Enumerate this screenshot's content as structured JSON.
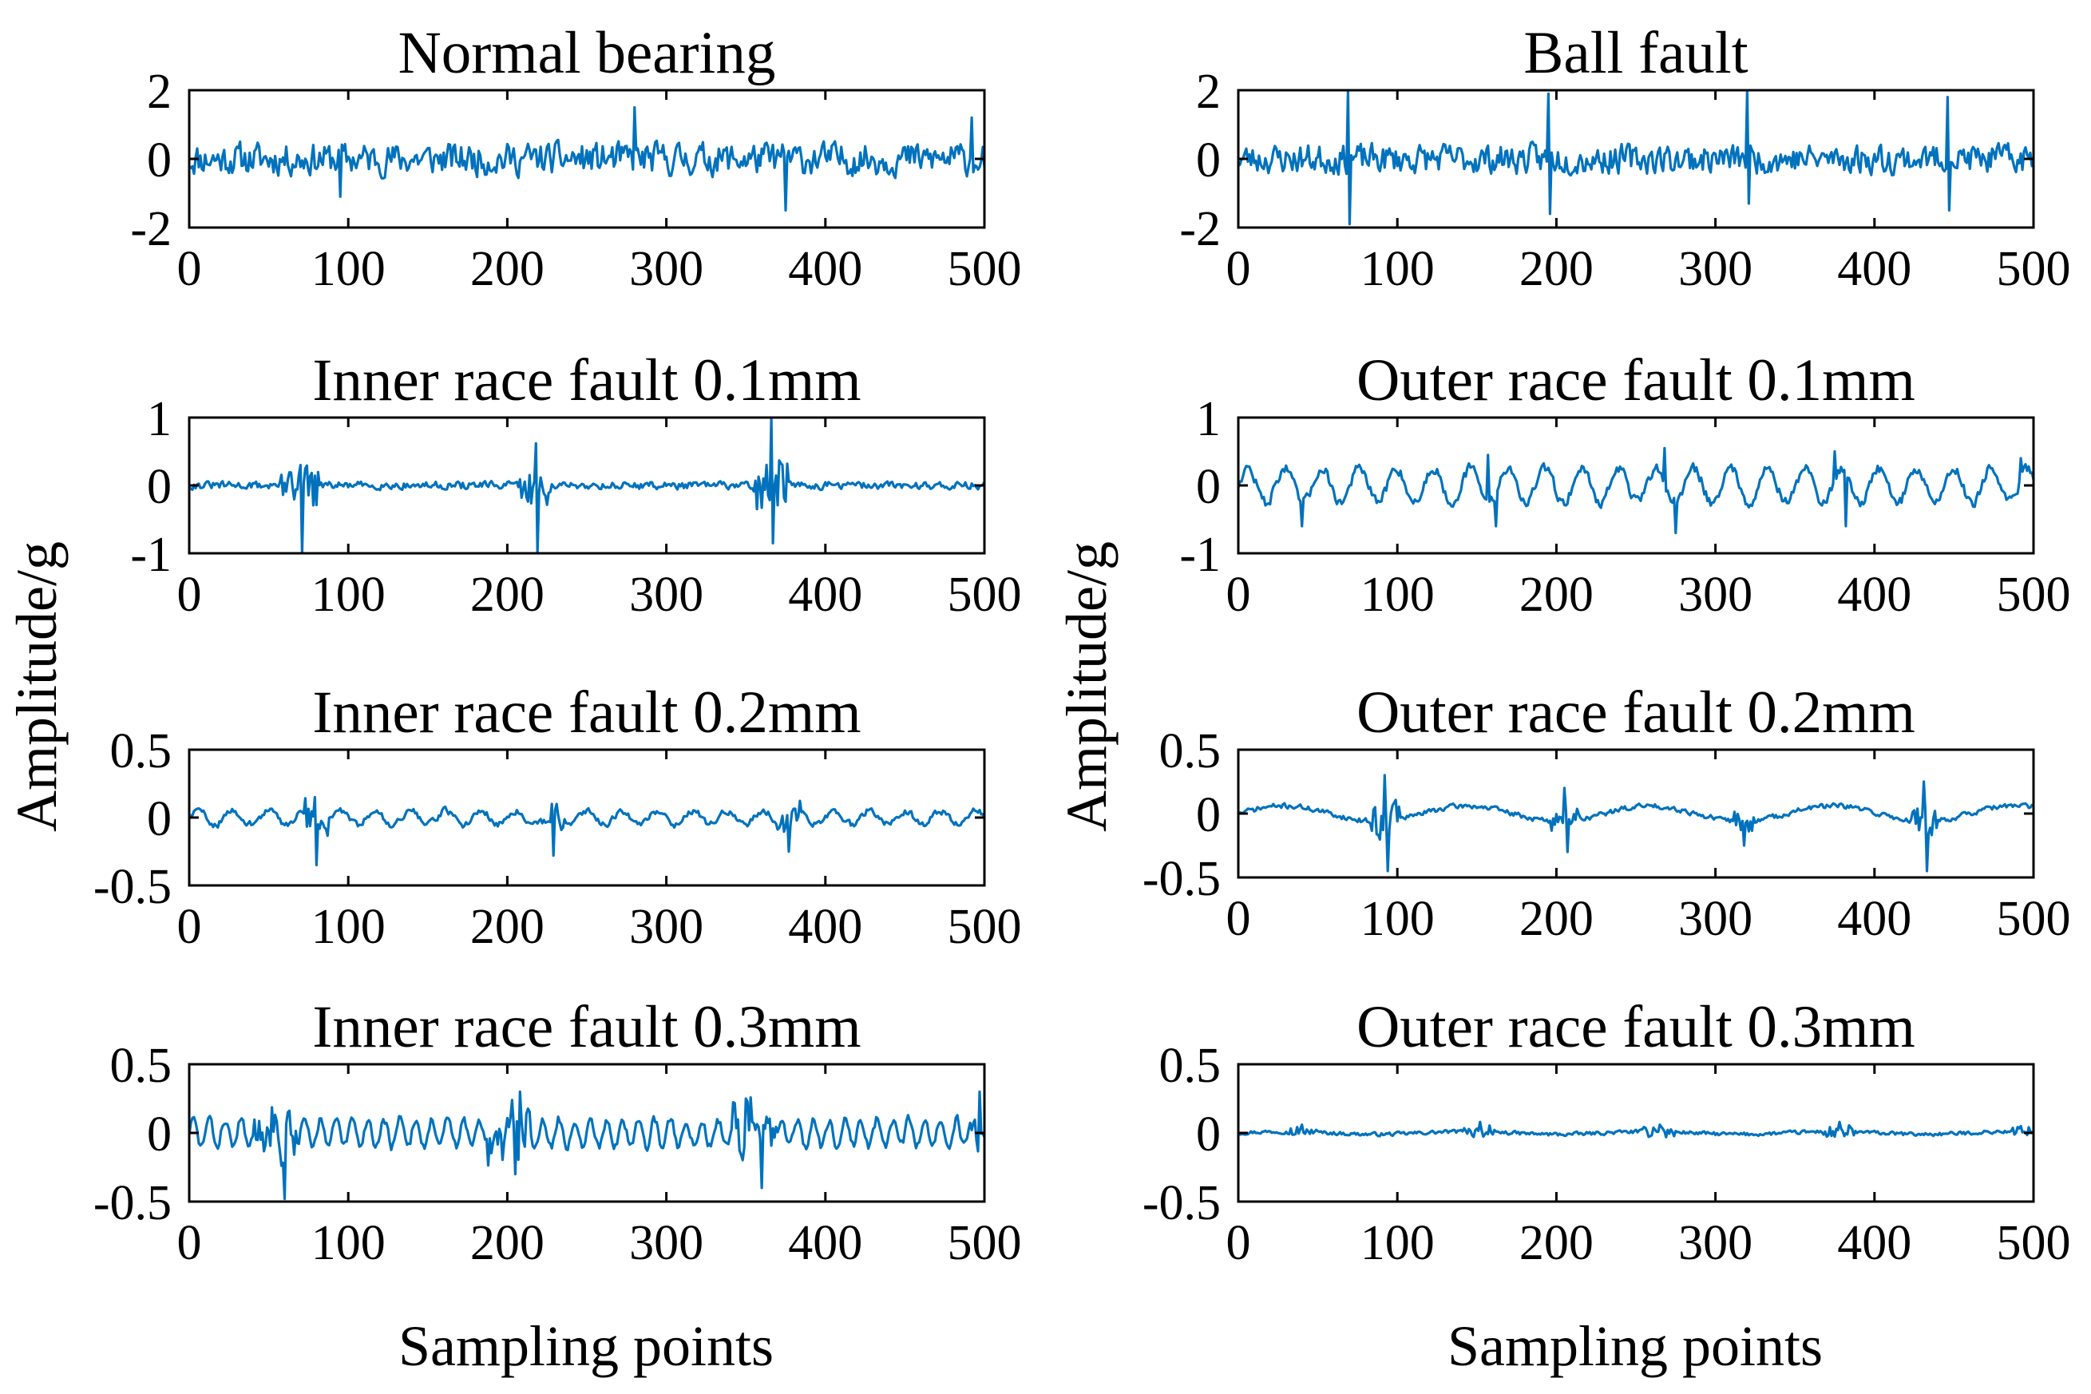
{
  "figure": {
    "shared_ylabel": "Amplitude/g",
    "shared_xlabel": "Sampling points",
    "line_color": "#0072BD"
  },
  "chart_data": [
    {
      "type": "line",
      "title": "Normal bearing",
      "xlabel": "",
      "ylabel": "",
      "xlim": [
        0,
        500
      ],
      "ylim": [
        -2,
        2
      ],
      "xticks": [
        "0",
        "100",
        "200",
        "300",
        "400",
        "500"
      ],
      "yticks": [
        "-2",
        "0",
        "2"
      ],
      "x": [
        0,
        500
      ],
      "signal": {
        "n": 500,
        "noise": 0.42,
        "period": 0,
        "impulse": 0,
        "decay": 0,
        "wave": 0,
        "wavefreq": 0,
        "mean": 0,
        "seed": 11
      },
      "peaks": [
        {
          "x": 280,
          "y": 1.5
        },
        {
          "x": 375,
          "y": -1.5
        },
        {
          "x": 492,
          "y": 1.2
        },
        {
          "x": 95,
          "y": -1.1
        }
      ]
    },
    {
      "type": "line",
      "title": "Ball fault",
      "xlabel": "",
      "ylabel": "",
      "xlim": [
        0,
        500
      ],
      "ylim": [
        -2,
        2
      ],
      "xticks": [
        "0",
        "100",
        "200",
        "300",
        "400",
        "500"
      ],
      "yticks": [
        "-2",
        "0",
        "2"
      ],
      "x": [
        0,
        500
      ],
      "signal": {
        "n": 500,
        "noise": 0.38,
        "period": 0,
        "impulse": 0,
        "decay": 0,
        "wave": 0,
        "wavefreq": 0,
        "mean": 0,
        "seed": 23
      },
      "peaks": [
        {
          "x": 69,
          "y": 2.0
        },
        {
          "x": 70,
          "y": -1.9
        },
        {
          "x": 195,
          "y": 1.9
        },
        {
          "x": 196,
          "y": -1.6
        },
        {
          "x": 320,
          "y": 2.0
        },
        {
          "x": 321,
          "y": -1.3
        },
        {
          "x": 446,
          "y": 1.8
        },
        {
          "x": 447,
          "y": -1.5
        }
      ]
    },
    {
      "type": "line",
      "title": "Inner race fault 0.1mm",
      "xlabel": "",
      "ylabel": "",
      "xlim": [
        0,
        500
      ],
      "ylim": [
        -1,
        1
      ],
      "xticks": [
        "0",
        "100",
        "200",
        "300",
        "400",
        "500"
      ],
      "yticks": [
        "-1",
        "0",
        "1"
      ],
      "x": [
        0,
        500
      ],
      "signal": {
        "n": 500,
        "noise": 0.05,
        "period": 0,
        "impulse": 0,
        "decay": 0,
        "wave": 0,
        "wavefreq": 0,
        "mean": 0,
        "seed": 31
      },
      "peaks": [
        {
          "x": 70,
          "y": 0.3
        },
        {
          "x": 71,
          "y": -1.0
        },
        {
          "x": 218,
          "y": 0.62
        },
        {
          "x": 219,
          "y": -1.0
        },
        {
          "x": 366,
          "y": 1.0
        },
        {
          "x": 367,
          "y": -0.85
        }
      ],
      "bursts": [
        {
          "x": 70,
          "amp": 0.3,
          "len": 25
        },
        {
          "x": 218,
          "amp": 0.25,
          "len": 20
        },
        {
          "x": 366,
          "amp": 0.35,
          "len": 22
        }
      ]
    },
    {
      "type": "line",
      "title": "Outer race fault 0.1mm",
      "xlabel": "",
      "ylabel": "",
      "xlim": [
        0,
        500
      ],
      "ylim": [
        -1,
        1
      ],
      "xticks": [
        "0",
        "100",
        "200",
        "300",
        "400",
        "500"
      ],
      "yticks": [
        "-1",
        "0",
        "1"
      ],
      "x": [
        0,
        500
      ],
      "signal": {
        "n": 500,
        "noise": 0.07,
        "period": 0,
        "impulse": 0,
        "decay": 0,
        "wave": 0.25,
        "wavefreq": 0.0428,
        "mean": 0,
        "seed": 47
      },
      "peaks": [
        {
          "x": 40,
          "y": -0.6
        },
        {
          "x": 157,
          "y": 0.45
        },
        {
          "x": 162,
          "y": -0.6
        },
        {
          "x": 275,
          "y": -0.7
        },
        {
          "x": 268,
          "y": 0.55
        },
        {
          "x": 382,
          "y": -0.6
        },
        {
          "x": 375,
          "y": 0.5
        },
        {
          "x": 492,
          "y": 0.4
        }
      ]
    },
    {
      "type": "line",
      "title": "Inner race fault 0.2mm",
      "xlabel": "",
      "ylabel": "",
      "xlim": [
        0,
        500
      ],
      "ylim": [
        -0.5,
        0.5
      ],
      "xticks": [
        "0",
        "100",
        "200",
        "300",
        "400",
        "500"
      ],
      "yticks": [
        "-0.5",
        "0",
        "0.5"
      ],
      "x": [
        0,
        500
      ],
      "signal": {
        "n": 500,
        "noise": 0.022,
        "period": 0,
        "impulse": 0,
        "decay": 0,
        "wave": 0.05,
        "wavefreq": 0.045,
        "mean": 0,
        "seed": 59
      },
      "peaks": [
        {
          "x": 80,
          "y": -0.35
        },
        {
          "x": 79,
          "y": 0.15
        },
        {
          "x": 229,
          "y": -0.28
        },
        {
          "x": 228,
          "y": 0.1
        },
        {
          "x": 377,
          "y": -0.25
        }
      ],
      "bursts": [
        {
          "x": 80,
          "amp": 0.1,
          "len": 15
        },
        {
          "x": 229,
          "amp": 0.08,
          "len": 15
        },
        {
          "x": 377,
          "amp": 0.07,
          "len": 15
        }
      ]
    },
    {
      "type": "line",
      "title": "Outer race fault 0.2mm",
      "xlabel": "",
      "ylabel": "",
      "xlim": [
        0,
        500
      ],
      "ylim": [
        -0.5,
        0.5
      ],
      "xticks": [
        "0",
        "100",
        "200",
        "300",
        "400",
        "500"
      ],
      "yticks": [
        "-0.5",
        "0",
        "0.5"
      ],
      "x": [
        0,
        500
      ],
      "signal": {
        "n": 500,
        "noise": 0.018,
        "period": 0,
        "impulse": 0,
        "decay": 0,
        "wave": 0.06,
        "wavefreq": 0.0087,
        "mean": 0,
        "seed": 71
      },
      "peaks": [
        {
          "x": 92,
          "y": 0.3
        },
        {
          "x": 94,
          "y": -0.45
        },
        {
          "x": 205,
          "y": 0.2
        },
        {
          "x": 207,
          "y": -0.3
        },
        {
          "x": 318,
          "y": -0.25
        },
        {
          "x": 431,
          "y": 0.25
        },
        {
          "x": 433,
          "y": -0.45
        }
      ],
      "bursts": [
        {
          "x": 93,
          "amp": 0.15,
          "len": 18
        },
        {
          "x": 206,
          "amp": 0.1,
          "len": 18
        },
        {
          "x": 318,
          "amp": 0.08,
          "len": 14
        },
        {
          "x": 432,
          "amp": 0.12,
          "len": 16
        }
      ]
    },
    {
      "type": "line",
      "title": "Inner race fault 0.3mm",
      "xlabel": "",
      "ylabel": "",
      "xlim": [
        0,
        500
      ],
      "ylim": [
        -0.5,
        0.5
      ],
      "xticks": [
        "0",
        "100",
        "200",
        "300",
        "400",
        "500"
      ],
      "yticks": [
        "-0.5",
        "0",
        "0.5"
      ],
      "x": [
        0,
        500
      ],
      "signal": {
        "n": 500,
        "noise": 0.03,
        "period": 0,
        "impulse": 0,
        "decay": 0,
        "wave": 0.1,
        "wavefreq": 0.1,
        "mean": 0,
        "seed": 83
      },
      "peaks": [
        {
          "x": 60,
          "y": -0.48
        },
        {
          "x": 208,
          "y": 0.3
        },
        {
          "x": 205,
          "y": -0.3
        },
        {
          "x": 360,
          "y": -0.4
        },
        {
          "x": 350,
          "y": 0.25
        },
        {
          "x": 497,
          "y": 0.3
        }
      ],
      "bursts": [
        {
          "x": 55,
          "amp": 0.15,
          "len": 30
        },
        {
          "x": 200,
          "amp": 0.15,
          "len": 30
        },
        {
          "x": 355,
          "amp": 0.15,
          "len": 30
        },
        {
          "x": 495,
          "amp": 0.1,
          "len": 10
        }
      ]
    },
    {
      "type": "line",
      "title": "Outer race fault 0.3mm",
      "xlabel": "",
      "ylabel": "",
      "xlim": [
        0,
        500
      ],
      "ylim": [
        -0.5,
        0.5
      ],
      "xticks": [
        "0",
        "100",
        "200",
        "300",
        "400",
        "500"
      ],
      "yticks": [
        "-0.5",
        "0",
        "0.5"
      ],
      "x": [
        0,
        500
      ],
      "signal": {
        "n": 500,
        "noise": 0.012,
        "period": 0,
        "impulse": 0,
        "decay": 0,
        "wave": 0.01,
        "wavefreq": 0.0087,
        "mean": 0,
        "seed": 97
      },
      "peaks": [
        {
          "x": 40,
          "y": 0.06
        },
        {
          "x": 152,
          "y": 0.08
        },
        {
          "x": 265,
          "y": 0.06
        },
        {
          "x": 378,
          "y": 0.08
        },
        {
          "x": 492,
          "y": 0.05
        }
      ],
      "bursts": [
        {
          "x": 40,
          "amp": 0.03,
          "len": 20
        },
        {
          "x": 152,
          "amp": 0.035,
          "len": 20
        },
        {
          "x": 265,
          "amp": 0.03,
          "len": 20
        },
        {
          "x": 378,
          "amp": 0.035,
          "len": 20
        },
        {
          "x": 492,
          "amp": 0.03,
          "len": 12
        }
      ]
    }
  ]
}
